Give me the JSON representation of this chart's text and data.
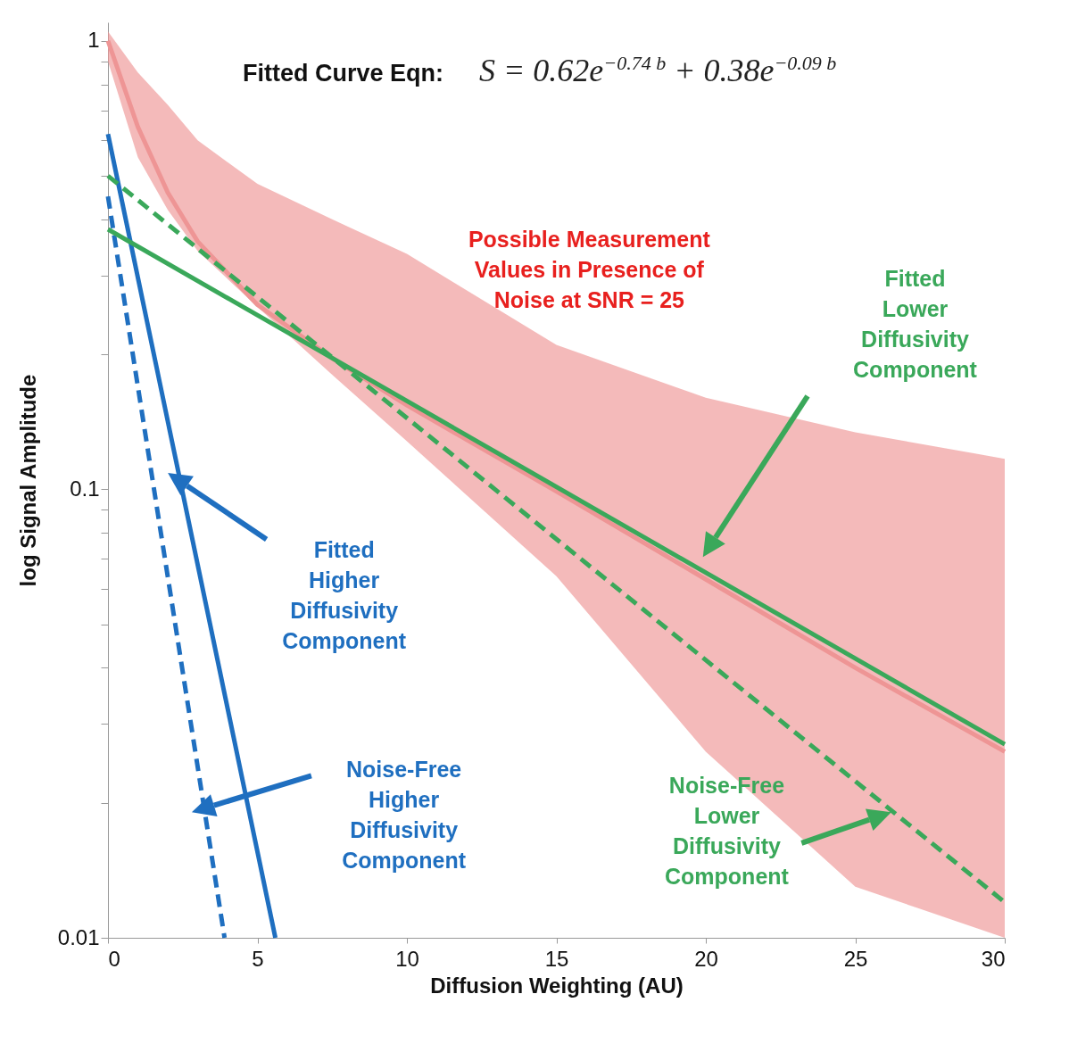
{
  "chart_data": {
    "type": "line",
    "xlabel": "Diffusion Weighting (AU)",
    "ylabel": "log Signal Amplitude",
    "log": "y",
    "xlim": [
      0,
      30
    ],
    "xticks": [
      0,
      5,
      10,
      15,
      20,
      25,
      30
    ],
    "ylim": [
      0.01,
      1.1
    ],
    "yticks": [
      0.01,
      {
        "value": 0.02,
        "label": null
      },
      {
        "value": 0.03,
        "label": null
      },
      {
        "value": 0.04,
        "label": null
      },
      {
        "value": 0.05,
        "label": null
      },
      {
        "value": 0.06,
        "label": null
      },
      {
        "value": 0.07,
        "label": null
      },
      {
        "value": 0.08,
        "label": null
      },
      {
        "value": 0.09,
        "label": null
      },
      0.1,
      {
        "value": 0.2,
        "label": null
      },
      {
        "value": 0.3,
        "label": null
      },
      {
        "value": 0.4,
        "label": null
      },
      {
        "value": 0.5,
        "label": null
      },
      {
        "value": 0.6,
        "label": null
      },
      {
        "value": 0.7,
        "label": null
      },
      {
        "value": 0.8,
        "label": null
      },
      {
        "value": 0.9,
        "label": null
      },
      1
    ],
    "grid": false,
    "series": [
      {
        "color": "#ee9595",
        "x": [
          0,
          1,
          2,
          3,
          5,
          7.5,
          10,
          15,
          20,
          25,
          30
        ],
        "values": [
          1.0,
          0.643,
          0.459,
          0.357,
          0.258,
          0.196,
          0.154,
          0.099,
          0.063,
          0.04,
          0.026
        ],
        "lower": [
          0.9,
          0.55,
          0.42,
          0.34,
          0.255,
          0.18,
          0.128,
          0.064,
          0.026,
          0.013,
          0.01
        ],
        "upper": [
          1.05,
          0.85,
          0.72,
          0.6,
          0.48,
          0.4,
          0.335,
          0.21,
          0.16,
          0.134,
          0.117
        ]
      },
      {
        "color": "#1f6fc0",
        "line_style": "solid",
        "x": [
          0,
          5.6
        ],
        "values": [
          0.62,
          0.01
        ]
      },
      {
        "color": "#1f6fc0",
        "line_style": "dashed",
        "x": [
          0,
          3.9
        ],
        "values": [
          0.45,
          0.01
        ]
      },
      {
        "color": "#3aa85a",
        "line_style": "solid",
        "x": [
          0,
          30
        ],
        "values": [
          0.38,
          0.027
        ]
      },
      {
        "color": "#3aa85a",
        "line_style": "dashed",
        "x": [
          0,
          30
        ],
        "values": [
          0.5,
          0.012
        ]
      }
    ],
    "annotations": [
      "Fitted Curve Eqn:",
      "S = 0.62e$^{−0.74 b}$ + 0.38e$^{−0.09 b}$",
      "Possible Measurement\nValues in Presence of\nNoise at SNR = 25",
      "Fitted\nLower\nDiffusivity\nComponent",
      "Noise-Free\nLower\nDiffusivity\nComponent",
      "Fitted\nHigher\nDiffusivity\nComponent",
      "Noise-Free\nHigher\nDiffusivity\nComponent"
    ]
  }
}
